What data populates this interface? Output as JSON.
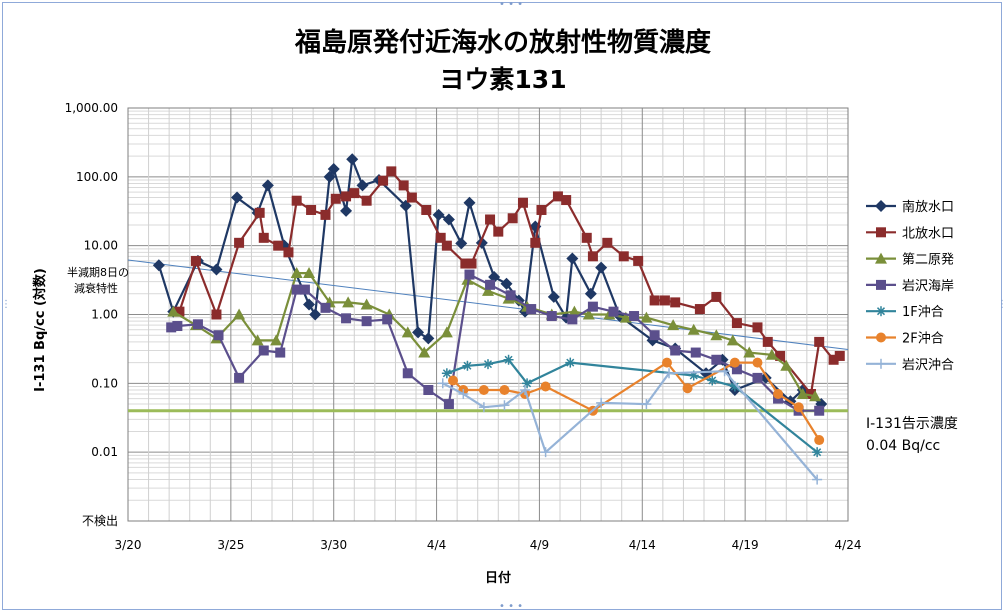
{
  "chart_data": {
    "type": "line",
    "title": "福島原発付近海水の放射性物質濃度",
    "subtitle": "ヨウ素131",
    "xlabel": "日付",
    "ylabel": "I-131 Bq/cc (対数)",
    "y_scale": "log",
    "ylim": [
      0.001,
      1000
    ],
    "y_ticks": [
      {
        "v": 1000,
        "label": "1,000.00"
      },
      {
        "v": 100,
        "label": "100.00"
      },
      {
        "v": 10,
        "label": "10.00"
      },
      {
        "v": 1,
        "label": "1.00"
      },
      {
        "v": 0.1,
        "label": "0.10"
      },
      {
        "v": 0.01,
        "label": "0.01"
      },
      {
        "v": 0.001,
        "label": "不検出"
      }
    ],
    "x_ticks": [
      {
        "v": 20,
        "label": "3/20"
      },
      {
        "v": 25,
        "label": "3/25"
      },
      {
        "v": 30,
        "label": "3/30"
      },
      {
        "v": 35,
        "label": "4/4"
      },
      {
        "v": 40,
        "label": "4/9"
      },
      {
        "v": 45,
        "label": "4/14"
      },
      {
        "v": 50,
        "label": "4/19"
      },
      {
        "v": 55,
        "label": "4/24"
      }
    ],
    "xlim": [
      20,
      55
    ],
    "grid": true,
    "legend_position": "right",
    "series": [
      {
        "name": "南放水口",
        "color": "#1f3864",
        "marker": "diamond",
        "x": [
          21.5,
          22.2,
          23.4,
          24.3,
          25.3,
          26.3,
          26.8,
          27.6,
          28.8,
          29.1,
          29.8,
          30.0,
          30.6,
          30.9,
          31.4,
          32.2,
          33.5,
          34.1,
          34.6,
          35.1,
          35.6,
          36.2,
          36.6,
          37.2,
          37.8,
          38.4,
          39.0,
          39.3,
          39.8,
          40.7,
          41.3,
          41.6,
          42.5,
          43.0,
          43.9,
          45.5,
          46.6,
          48.1,
          48.9,
          49.5,
          51.0,
          52.2,
          52.8,
          53.7
        ],
        "y": [
          5.2,
          1.1,
          6,
          4.5,
          50,
          30,
          75,
          10,
          1.4,
          1,
          100,
          130,
          32,
          180,
          75,
          90,
          38,
          0.55,
          0.45,
          28,
          24,
          10.8,
          42,
          11,
          3.5,
          2.8,
          1.6,
          1.1,
          19,
          1.8,
          0.9,
          6.5,
          2,
          4.8,
          0.95,
          0.42,
          0.32,
          0.14,
          0.22,
          0.08,
          0.12,
          0.055,
          0.08,
          0.05
        ]
      },
      {
        "name": "北放水口",
        "color": "#8b2c2c",
        "marker": "square",
        "x": [
          22.5,
          23.3,
          24.3,
          25.4,
          26.4,
          26.6,
          27.3,
          27.8,
          28.2,
          28.9,
          29.6,
          30.1,
          30.6,
          31.0,
          31.6,
          32.4,
          32.8,
          33.4,
          33.8,
          34.5,
          35.2,
          35.5,
          36.4,
          36.7,
          37.6,
          38.0,
          38.7,
          39.2,
          39.8,
          40.1,
          40.9,
          41.3,
          42.3,
          42.6,
          43.3,
          44.1,
          44.8,
          45.6,
          46.1,
          46.6,
          47.8,
          48.6,
          49.6,
          50.6,
          51.1,
          51.7,
          53.2,
          53.6,
          54.3,
          54.6
        ],
        "y": [
          1.1,
          6,
          1.0,
          11,
          30,
          13,
          10,
          8,
          45,
          33,
          28,
          48,
          52,
          58,
          45,
          88,
          120,
          75,
          50,
          33,
          13,
          10,
          5.5,
          5.5,
          24,
          16,
          25,
          42,
          11,
          33,
          52,
          46,
          13,
          7,
          11,
          7,
          6,
          1.6,
          1.6,
          1.5,
          1.2,
          1.8,
          0.75,
          0.65,
          0.4,
          0.25,
          0.07,
          0.4,
          0.22,
          0.25
        ]
      },
      {
        "name": "第二原発",
        "color": "#7a8f3a",
        "marker": "triangle",
        "x": [
          22.2,
          23.3,
          24.3,
          25.4,
          26.3,
          27.2,
          28.2,
          28.8,
          29.8,
          30.7,
          31.6,
          32.7,
          33.6,
          34.4,
          35.5,
          36.5,
          37.5,
          38.5,
          39.4,
          40.6,
          41.7,
          42.4,
          43.4,
          44.2,
          45.2,
          46.5,
          47.5,
          48.6,
          49.4,
          50.2,
          51.3,
          52.0,
          52.8,
          53.4
        ],
        "y": [
          1.1,
          0.7,
          0.45,
          1.0,
          0.42,
          0.42,
          4,
          4,
          1.5,
          1.5,
          1.4,
          1.0,
          0.55,
          0.28,
          0.55,
          3.2,
          2.2,
          1.7,
          1.3,
          1.0,
          1.1,
          1.0,
          1.0,
          0.9,
          0.9,
          0.7,
          0.6,
          0.5,
          0.42,
          0.28,
          0.26,
          0.18,
          0.07,
          0.065
        ]
      },
      {
        "name": "岩沢海岸",
        "color": "#5b4f8c",
        "marker": "square",
        "x": [
          22.1,
          22.4,
          23.4,
          24.4,
          25.4,
          26.6,
          27.4,
          28.2,
          28.6,
          29.6,
          30.6,
          31.6,
          32.6,
          33.6,
          34.6,
          35.6,
          36.6,
          37.6,
          38.6,
          39.6,
          40.6,
          41.6,
          42.6,
          43.6,
          44.6,
          45.6,
          46.6,
          47.6,
          48.6,
          49.6,
          50.6,
          51.6,
          52.6,
          53.6
        ],
        "y": [
          0.65,
          0.68,
          0.72,
          0.5,
          0.12,
          0.3,
          0.28,
          2.3,
          2.3,
          1.25,
          0.88,
          0.8,
          0.85,
          0.14,
          0.08,
          0.05,
          3.8,
          2.7,
          1.9,
          1.2,
          0.95,
          0.85,
          1.3,
          1.1,
          0.95,
          0.5,
          0.3,
          0.28,
          0.22,
          0.16,
          0.12,
          0.06,
          0.04,
          0.04
        ]
      },
      {
        "name": "1F沖合",
        "color": "#31849b",
        "marker": "star",
        "x": [
          35.5,
          36.5,
          37.5,
          38.5,
          39.4,
          41.5,
          47.5,
          48.4,
          49.5,
          53.5
        ],
        "y": [
          0.14,
          0.18,
          0.19,
          0.22,
          0.1,
          0.2,
          0.13,
          0.11,
          0.09,
          0.01
        ]
      },
      {
        "name": "2F沖合",
        "color": "#e8822c",
        "marker": "circle",
        "x": [
          35.8,
          36.3,
          37.3,
          38.3,
          39.3,
          40.3,
          42.6,
          46.2,
          47.2,
          49.5,
          50.6,
          51.6,
          52.6,
          53.6
        ],
        "y": [
          0.11,
          0.08,
          0.08,
          0.08,
          0.07,
          0.09,
          0.04,
          0.2,
          0.085,
          0.2,
          0.2,
          0.07,
          0.045,
          0.015
        ]
      },
      {
        "name": "岩沢沖合",
        "color": "#95b3d7",
        "marker": "plus",
        "x": [
          35.3,
          36.3,
          37.3,
          38.3,
          39.3,
          40.3,
          43.0,
          45.2,
          46.3,
          49.0,
          53.5
        ],
        "y": [
          0.1,
          0.07,
          0.045,
          0.048,
          0.08,
          0.01,
          0.052,
          0.05,
          0.14,
          0.15,
          0.004
        ]
      }
    ],
    "annotations": {
      "half_life_label_1": "半減期8日の",
      "half_life_label_2": "減衰特性",
      "half_life_line": {
        "x": [
          20,
          55
        ],
        "y": [
          6.2,
          0.31
        ],
        "color": "#4f81bd"
      },
      "threshold_label_1": "I-131告示濃度",
      "threshold_label_2": "0.04 Bq/cc",
      "threshold_value": 0.04,
      "threshold_color": "#9bbb59"
    }
  }
}
